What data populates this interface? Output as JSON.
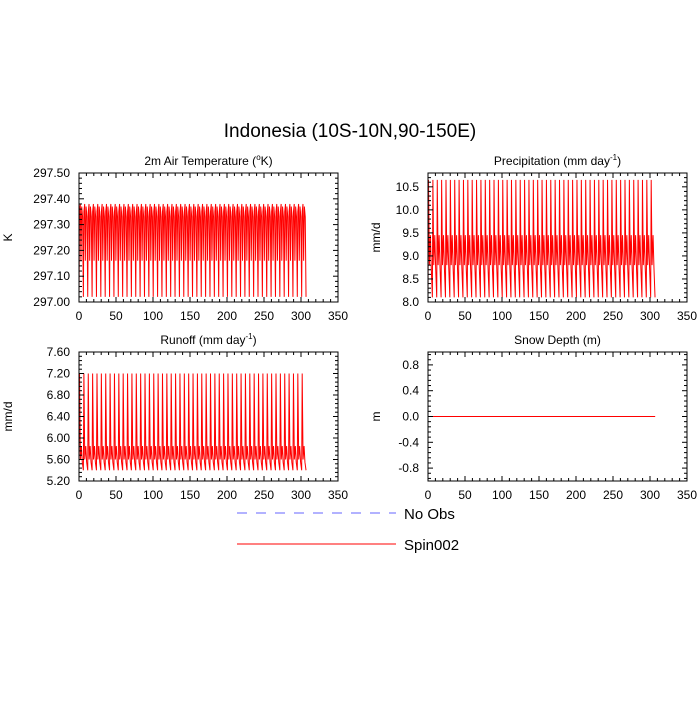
{
  "page": {
    "title": "Indonesia (10S-10N,90-150E)"
  },
  "legend": {
    "placement": "bottom-center",
    "entries": [
      {
        "label": "No Obs",
        "color": "#6666ff",
        "dash": true
      },
      {
        "label": "Spin002",
        "color": "#ff0000",
        "dash": false
      }
    ]
  },
  "chart_data": [
    {
      "type": "line",
      "title_main": "2m Air Temperature (",
      "title_sup": "o",
      "title_end": "K)",
      "ylabel": "K",
      "xlim": [
        0,
        350
      ],
      "ylim": [
        297.0,
        297.5
      ],
      "xticks": [
        "0",
        "50",
        "100",
        "150",
        "200",
        "250",
        "300",
        "350"
      ],
      "yticks": [
        "297.00",
        "297.10",
        "297.20",
        "297.30",
        "297.40",
        "297.50"
      ],
      "series": [
        {
          "name": "Spin002",
          "color": "#ff0000",
          "cycles": 52,
          "period": 5.9,
          "profile": [
            [
              0,
              297.02
            ],
            [
              0.12,
              297.35
            ],
            [
              0.3,
              297.38
            ],
            [
              0.45,
              297.16
            ],
            [
              0.62,
              297.37
            ],
            [
              0.82,
              297.33
            ],
            [
              1,
              297.02
            ]
          ]
        }
      ]
    },
    {
      "type": "line",
      "title_main": "Precipitation (mm day",
      "title_sup": "-1",
      "title_end": ")",
      "ylabel": "mm/d",
      "xlim": [
        0,
        350
      ],
      "ylim": [
        8.0,
        10.8
      ],
      "xticks": [
        "0",
        "50",
        "100",
        "150",
        "200",
        "250",
        "300",
        "350"
      ],
      "yticks": [
        "8.0",
        "8.5",
        "9.0",
        "9.5",
        "10.0",
        "10.5"
      ],
      "series": [
        {
          "name": "Spin002",
          "color": "#ff0000",
          "cycles": 52,
          "period": 5.9,
          "profile": [
            [
              0,
              8.1
            ],
            [
              0.12,
              10.65
            ],
            [
              0.32,
              8.8
            ],
            [
              0.55,
              9.45
            ],
            [
              0.75,
              8.75
            ],
            [
              1,
              8.1
            ]
          ]
        }
      ]
    },
    {
      "type": "line",
      "title_main": "Runoff (mm day",
      "title_sup": "-1",
      "title_end": ")",
      "ylabel": "mm/d",
      "xlim": [
        0,
        350
      ],
      "ylim": [
        5.2,
        7.6
      ],
      "xticks": [
        "0",
        "50",
        "100",
        "150",
        "200",
        "250",
        "300",
        "350"
      ],
      "yticks": [
        "5.20",
        "5.60",
        "6.00",
        "6.40",
        "6.80",
        "7.20",
        "7.60"
      ],
      "series": [
        {
          "name": "Spin002",
          "color": "#ff0000",
          "cycles": 52,
          "period": 5.9,
          "profile": [
            [
              0,
              5.4
            ],
            [
              0.12,
              7.2
            ],
            [
              0.32,
              5.6
            ],
            [
              0.55,
              5.85
            ],
            [
              0.75,
              5.55
            ],
            [
              1,
              5.4
            ]
          ]
        }
      ]
    },
    {
      "type": "line",
      "title_main": "Snow Depth (m)",
      "title_sup": "",
      "title_end": "",
      "ylabel": "m",
      "xlim": [
        0,
        350
      ],
      "ylim": [
        -1.0,
        1.0
      ],
      "xticks": [
        "0",
        "50",
        "100",
        "150",
        "200",
        "250",
        "300",
        "350"
      ],
      "yticks": [
        "-0.8",
        "-0.4",
        "0.0",
        "0.4",
        "0.8"
      ],
      "series": [
        {
          "name": "Spin002",
          "color": "#ff0000",
          "constant": 0.0,
          "x_end": 307
        }
      ]
    }
  ]
}
